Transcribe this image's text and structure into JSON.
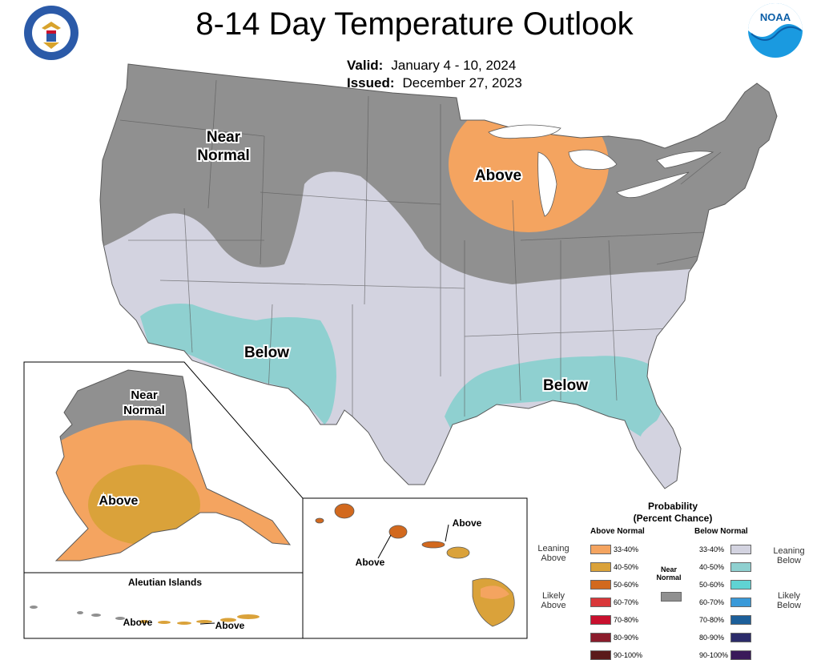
{
  "title": "8-14 Day Temperature Outlook",
  "valid_label": "Valid:",
  "valid_value": "January 4 - 10, 2024",
  "issued_label": "Issued:",
  "issued_value": "December 27, 2023",
  "logos": {
    "left": "department-of-commerce-seal",
    "right": "noaa-logo"
  },
  "map_labels": {
    "conus_near_normal_1": "Near",
    "conus_near_normal_2": "Normal",
    "conus_above": "Above",
    "conus_below_west": "Below",
    "conus_below_southeast": "Below",
    "alaska_near_normal_1": "Near",
    "alaska_near_normal_2": "Normal",
    "alaska_above": "Above",
    "aleutian_title": "Aleutian Islands",
    "aleutian_above_1": "Above",
    "aleutian_above_2": "Above",
    "hawaii_above_1": "Above",
    "hawaii_above_2": "Above"
  },
  "colors": {
    "near_normal": "#909090",
    "above_33_40": "#f4a460",
    "above_40_50": "#daa23a",
    "below_33_40": "#d3d3e0",
    "below_40_50": "#8fd0d0",
    "state_line": "#5a5a5a"
  },
  "legend": {
    "title_1": "Probability",
    "title_2": "(Percent Chance)",
    "above_header": "Above Normal",
    "below_header": "Below Normal",
    "near_normal_1": "Near",
    "near_normal_2": "Normal",
    "leaning_above_1": "Leaning",
    "leaning_above_2": "Above",
    "likely_above_1": "Likely",
    "likely_above_2": "Above",
    "leaning_below_1": "Leaning",
    "leaning_below_2": "Below",
    "likely_below_1": "Likely",
    "likely_below_2": "Below",
    "above_bins": [
      {
        "label": "33-40%",
        "color": "#f4a460"
      },
      {
        "label": "40-50%",
        "color": "#daa23a"
      },
      {
        "label": "50-60%",
        "color": "#d2691e"
      },
      {
        "label": "60-70%",
        "color": "#d9373a"
      },
      {
        "label": "70-80%",
        "color": "#c8102e"
      },
      {
        "label": "80-90%",
        "color": "#8b1c2c"
      },
      {
        "label": "90-100%",
        "color": "#5a1a1a"
      }
    ],
    "below_bins": [
      {
        "label": "33-40%",
        "color": "#d3d3e0"
      },
      {
        "label": "40-50%",
        "color": "#8fd0d0"
      },
      {
        "label": "50-60%",
        "color": "#5fd3d3"
      },
      {
        "label": "60-70%",
        "color": "#3a9ad9"
      },
      {
        "label": "70-80%",
        "color": "#1d5f9a"
      },
      {
        "label": "80-90%",
        "color": "#2c2c6a"
      },
      {
        "label": "90-100%",
        "color": "#3a1a5a"
      }
    ]
  }
}
